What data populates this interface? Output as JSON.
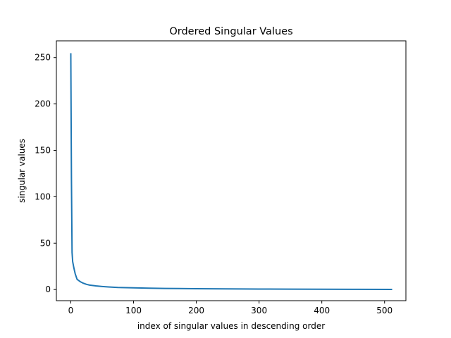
{
  "chart_data": {
    "type": "line",
    "title": "Ordered Singular Values",
    "xlabel": "index of singular values in descending order",
    "ylabel": "singular values",
    "xlim": [
      -23,
      534
    ],
    "ylim": [
      -12,
      268
    ],
    "xticks": [
      0,
      100,
      200,
      300,
      400,
      500
    ],
    "yticks": [
      0,
      50,
      100,
      150,
      200,
      250
    ],
    "grid": false,
    "series": [
      {
        "color": "#1f77b4",
        "x": [
          0,
          1,
          2,
          3,
          5,
          7,
          10,
          15,
          20,
          25,
          30,
          40,
          50,
          60,
          75,
          100,
          125,
          150,
          200,
          250,
          300,
          350,
          400,
          450,
          511
        ],
        "y": [
          254,
          120,
          40,
          30,
          23,
          17,
          11,
          8.5,
          6.8,
          5.6,
          4.8,
          3.9,
          3.3,
          2.8,
          2.2,
          1.8,
          1.5,
          1.2,
          0.9,
          0.7,
          0.55,
          0.45,
          0.35,
          0.25,
          0.1
        ]
      }
    ]
  }
}
